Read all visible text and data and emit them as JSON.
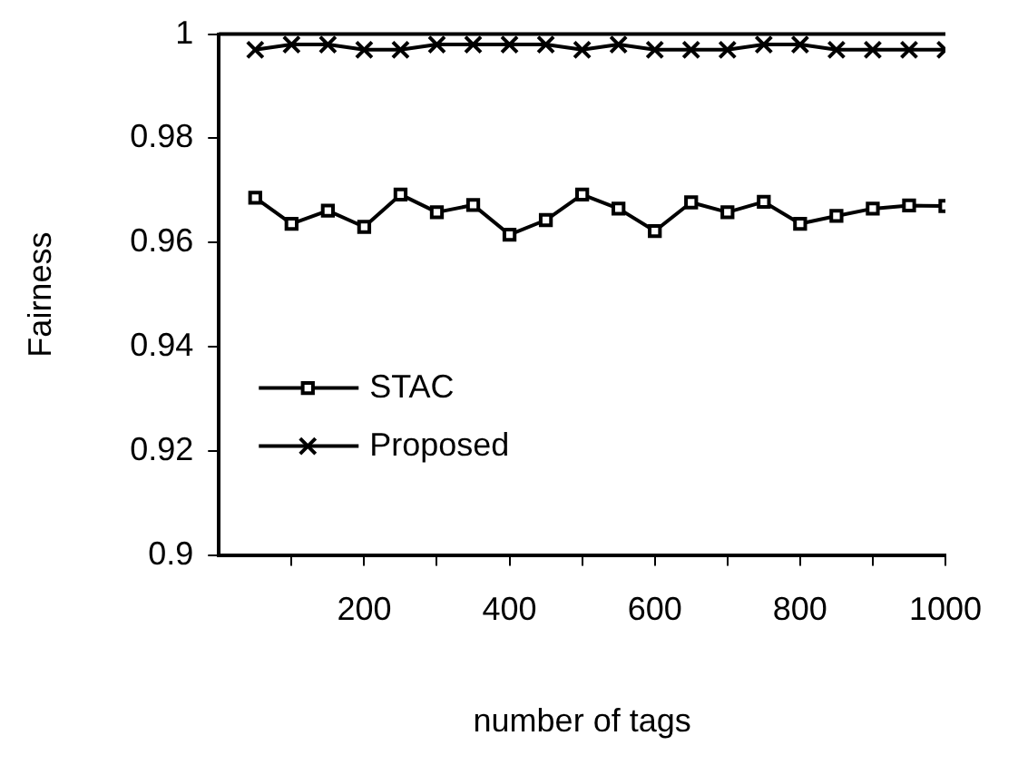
{
  "chart_data": {
    "type": "line",
    "xlabel": "number of tags",
    "ylabel": "Fairness",
    "x": [
      50,
      100,
      150,
      200,
      250,
      300,
      350,
      400,
      450,
      500,
      550,
      600,
      650,
      700,
      750,
      800,
      850,
      900,
      950,
      1000
    ],
    "series": [
      {
        "name": "STAC",
        "color": "#000000",
        "marker": "square",
        "values": [
          0.9686,
          0.9636,
          0.9661,
          0.963,
          0.9692,
          0.9658,
          0.9672,
          0.9615,
          0.9643,
          0.9692,
          0.9665,
          0.9622,
          0.9677,
          0.9658,
          0.9678,
          0.9636,
          0.9651,
          0.9665,
          0.9671,
          0.967
        ]
      },
      {
        "name": "Proposed",
        "color": "#000000",
        "marker": "cross",
        "values": [
          0.997,
          0.998,
          0.998,
          0.997,
          0.997,
          0.998,
          0.998,
          0.998,
          0.998,
          0.997,
          0.998,
          0.997,
          0.997,
          0.997,
          0.998,
          0.998,
          0.997,
          0.997,
          0.997,
          0.997
        ]
      }
    ],
    "xlim": [
      0,
      1000
    ],
    "xticks": [
      {
        "value": 100,
        "label": null
      },
      200,
      {
        "value": 300,
        "label": null
      },
      400,
      {
        "value": 500,
        "label": null
      },
      600,
      {
        "value": 700,
        "label": null
      },
      800,
      {
        "value": 900,
        "label": null
      },
      1000
    ],
    "ylim": [
      0.9,
      1
    ],
    "yticks": [
      0.9,
      0.92,
      0.94,
      0.96,
      0.98,
      1
    ],
    "grid": false,
    "legend": "bottom left",
    "line_style": "solid"
  }
}
